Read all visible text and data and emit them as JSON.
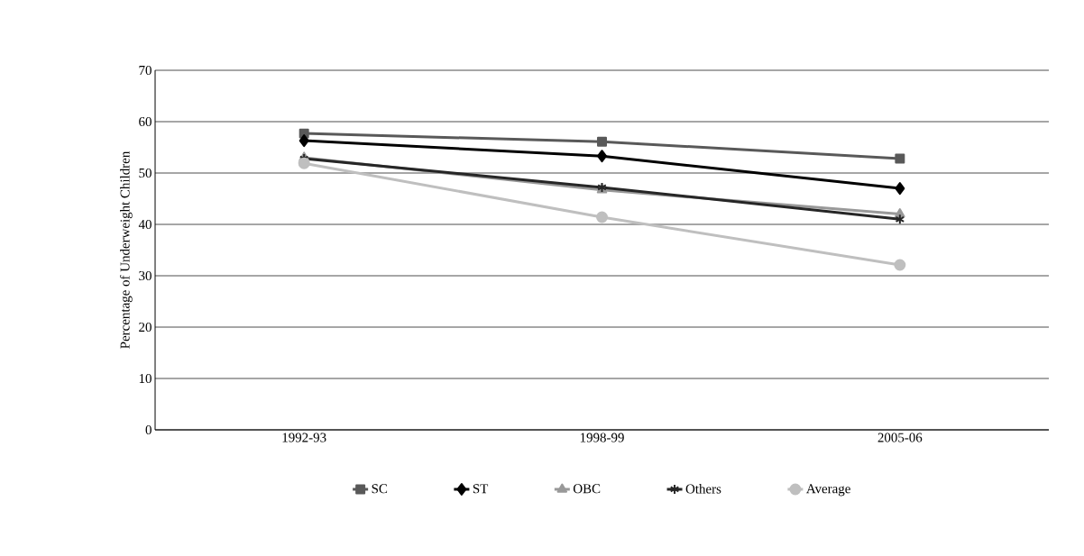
{
  "chart_data": {
    "type": "line",
    "ylabel": "Percentage of Underweight Children",
    "categories": [
      "1992-93",
      "1998-99",
      "2005-06"
    ],
    "series": [
      {
        "name": "SC",
        "color": "#595959",
        "marker": "square",
        "values": [
          57.7,
          56.1,
          52.8
        ]
      },
      {
        "name": "ST",
        "color": "#000000",
        "marker": "diamond",
        "values": [
          56.3,
          53.3,
          47.0
        ]
      },
      {
        "name": "OBC",
        "color": "#999999",
        "marker": "triangle",
        "values": [
          53.0,
          46.7,
          42.0
        ]
      },
      {
        "name": "Others",
        "color": "#262626",
        "marker": "cross",
        "values": [
          52.8,
          47.2,
          41.0
        ]
      },
      {
        "name": "Average",
        "color": "#bfbfbf",
        "marker": "circle",
        "values": [
          51.9,
          41.4,
          32.1
        ]
      }
    ],
    "ylim": [
      0,
      70
    ],
    "yticks": [
      0,
      10,
      20,
      30,
      40,
      50,
      60,
      70
    ],
    "grid": "y",
    "legend": "bottom",
    "line_style": "solid"
  }
}
